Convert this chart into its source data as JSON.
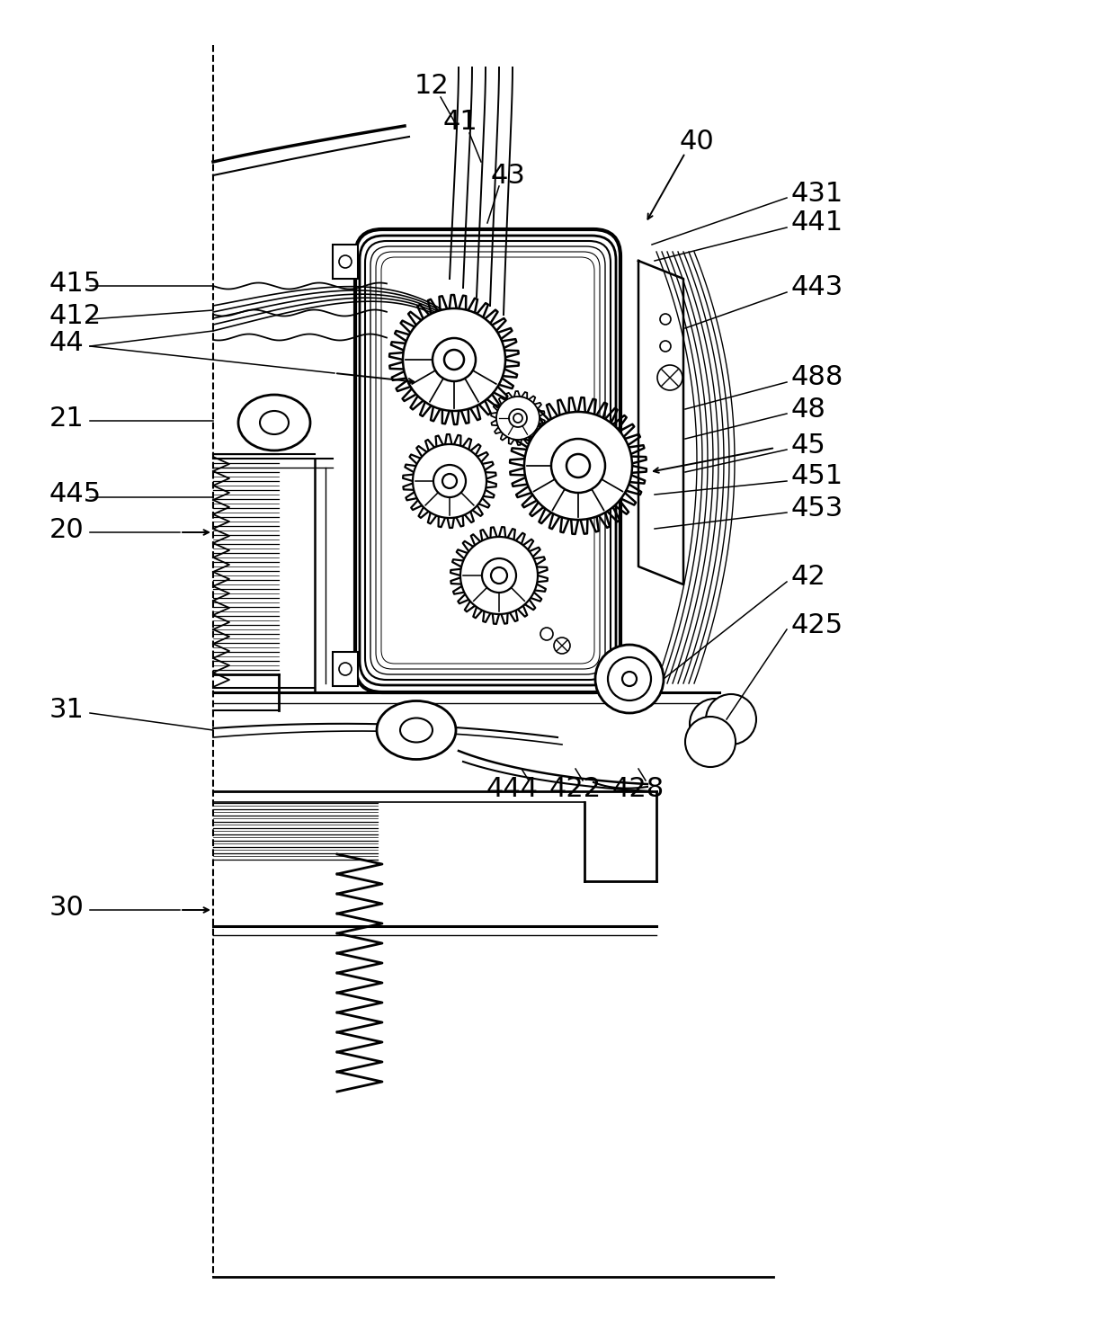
{
  "bg_color": "#ffffff",
  "line_color": "#000000",
  "fig_width": 12.4,
  "fig_height": 14.68
}
